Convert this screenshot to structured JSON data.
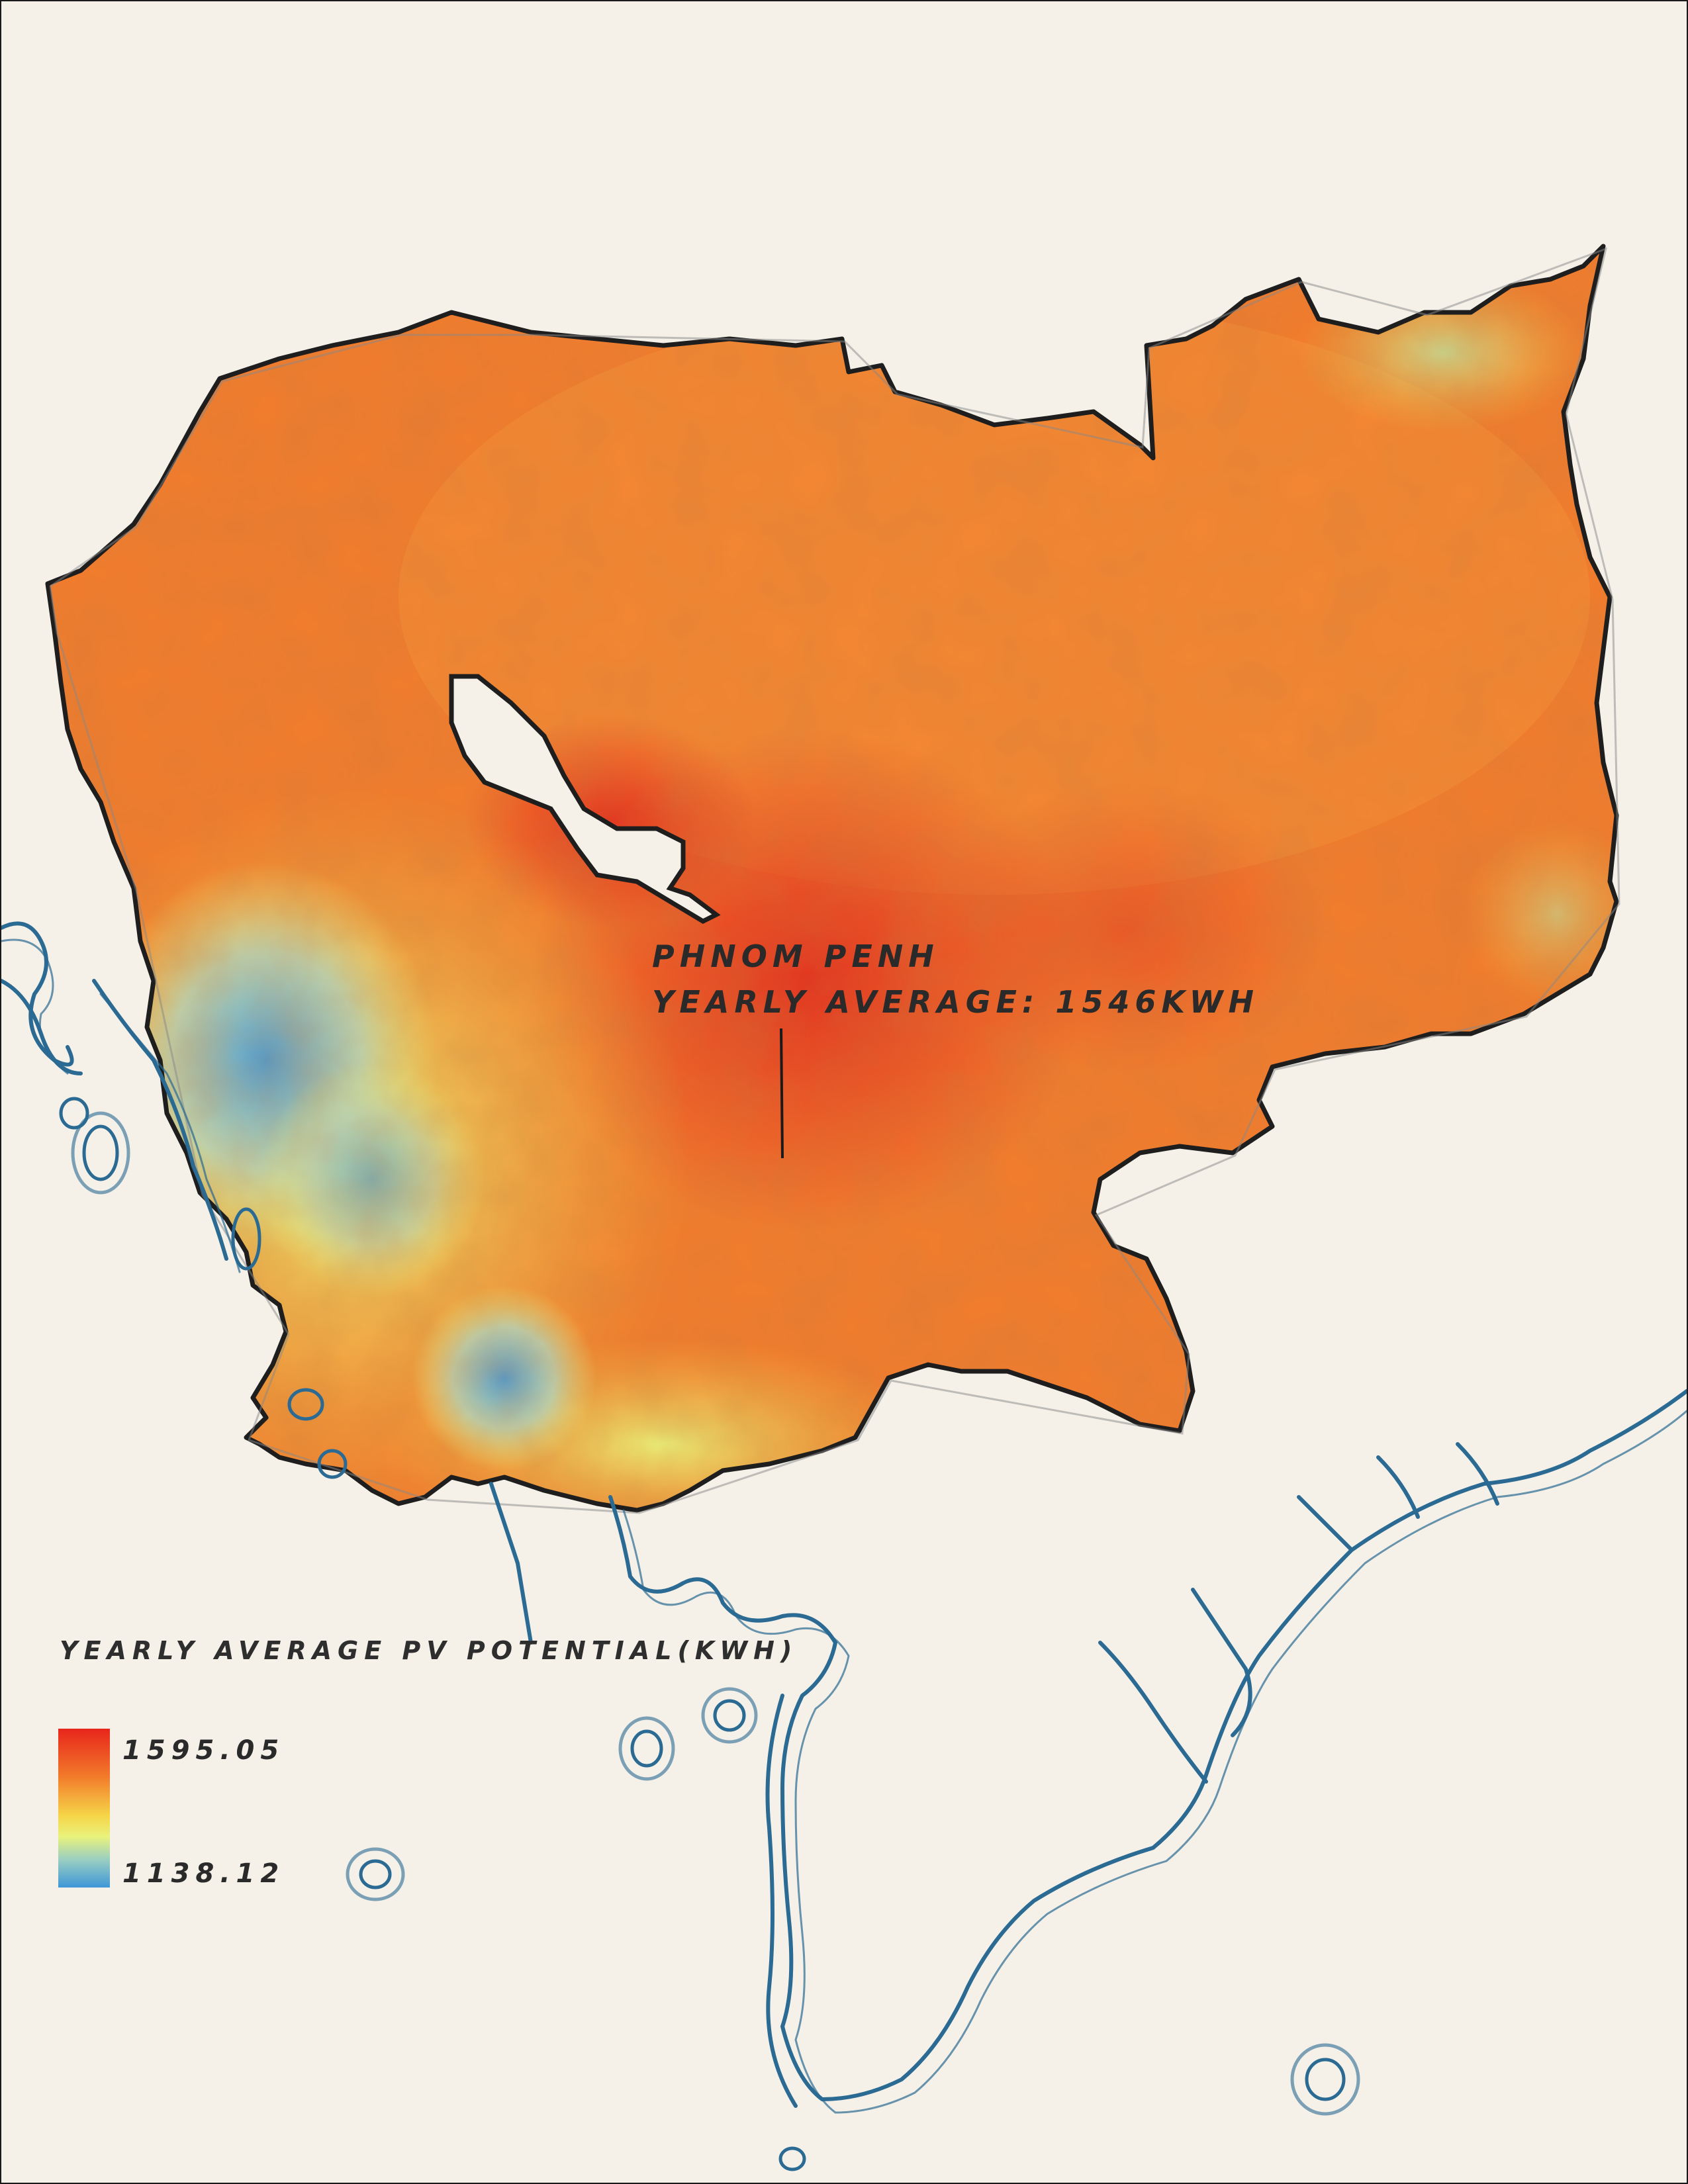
{
  "map": {
    "city_label": "PHNOM PENH",
    "city_value_label": "YEARLY AVERAGE: 1546KWH"
  },
  "legend": {
    "title": "YEARLY AVERAGE PV POTENTIAL(KWH)",
    "max_label": "1595.05",
    "min_label": "1138.12",
    "max_value": 1595.05,
    "min_value": 1138.12,
    "color_high": "#e8251c",
    "color_mid": "#f6d648",
    "color_low": "#3f97d8"
  },
  "colors": {
    "background": "#f5f1e8",
    "border": "#1a1a1a",
    "water_line": "#2a6a93",
    "land_fill": "#f47c2c"
  }
}
